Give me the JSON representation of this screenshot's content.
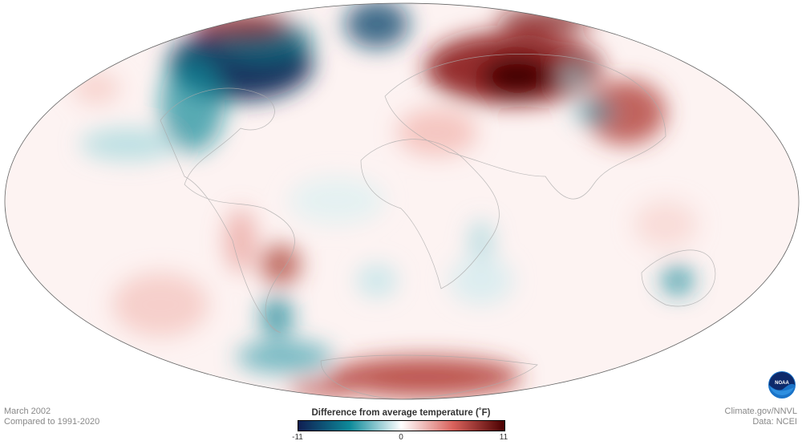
{
  "map": {
    "projection": "Hammer / Mollweide-style ellipse",
    "anomaly_summary": "Strong warm anomalies over northern Eurasia and Antarctic sector; cold anomalies over Greenland/northeastern Canada and Arctic"
  },
  "info_left": {
    "date": "March 2002",
    "baseline": "Compared to 1991-2020"
  },
  "info_right": {
    "credit": "Climate.gov/NNVL",
    "data_source": "Data: NCEI"
  },
  "legend": {
    "title": "Difference from average temperature  (˚F)",
    "min_label": "-11",
    "mid_label": "0",
    "max_label": "11",
    "colors": [
      "#0f1e52",
      "#0e8a9a",
      "#ffffff",
      "#d9625c",
      "#4a0000"
    ]
  },
  "logo": {
    "text": "NOAA"
  }
}
